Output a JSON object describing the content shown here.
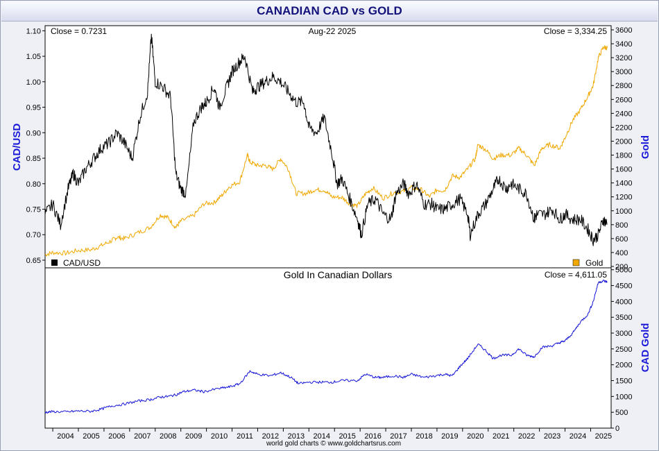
{
  "page": {
    "title": "CANADIAN CAD vs GOLD",
    "footer": "world gold charts © www.goldchartsrus.com"
  },
  "colors": {
    "cad": "#000000",
    "gold": "#f0a800",
    "cad_gold": "#1212d8",
    "axis_title": "#1a1ad8"
  },
  "chart_data": [
    {
      "type": "line",
      "title": "",
      "date_label": "Aug-22  2025",
      "left_close_label": "Close = 0.7231",
      "right_close_label": "Close = 3,334.25",
      "ylabel_left": "CAD/USD",
      "ylabel_right": "Gold",
      "ylim_left": [
        0.635,
        1.11
      ],
      "ylim_right": [
        180,
        3660
      ],
      "yticks_left": [
        "0.65",
        "0.70",
        "0.75",
        "0.80",
        "0.85",
        "0.90",
        "0.95",
        "1.00",
        "1.05",
        "1.10"
      ],
      "yticks_right": [
        "200",
        "400",
        "600",
        "800",
        "1000",
        "1200",
        "1400",
        "1600",
        "1800",
        "2000",
        "2200",
        "2400",
        "2600",
        "2800",
        "3000",
        "3200",
        "3400",
        "3600"
      ],
      "xlim": [
        2003.7,
        2025.8
      ],
      "grid": false,
      "legend": {
        "left": "CAD/USD",
        "right": "Gold",
        "placement": "bottom"
      },
      "series": [
        {
          "name": "CAD/USD",
          "axis": "left",
          "x": [
            2003.7,
            2004.0,
            2004.3,
            2004.6,
            2004.8,
            2005.0,
            2005.3,
            2005.6,
            2005.9,
            2006.2,
            2006.5,
            2006.8,
            2007.1,
            2007.4,
            2007.7,
            2007.85,
            2008.0,
            2008.3,
            2008.6,
            2008.8,
            2009.0,
            2009.2,
            2009.5,
            2009.8,
            2010.0,
            2010.3,
            2010.5,
            2010.8,
            2011.0,
            2011.3,
            2011.5,
            2011.8,
            2012.0,
            2012.3,
            2012.6,
            2012.9,
            2013.2,
            2013.5,
            2013.8,
            2014.0,
            2014.3,
            2014.6,
            2014.9,
            2015.1,
            2015.3,
            2015.6,
            2015.9,
            2016.05,
            2016.3,
            2016.6,
            2016.9,
            2017.2,
            2017.4,
            2017.7,
            2017.9,
            2018.2,
            2018.5,
            2018.8,
            2019.0,
            2019.3,
            2019.6,
            2019.9,
            2020.2,
            2020.3,
            2020.6,
            2020.9,
            2021.2,
            2021.4,
            2021.7,
            2021.9,
            2022.2,
            2022.5,
            2022.8,
            2022.9,
            2023.2,
            2023.5,
            2023.8,
            2024.0,
            2024.3,
            2024.6,
            2024.9,
            2025.1,
            2025.3,
            2025.5,
            2025.65
          ],
          "y": [
            0.74,
            0.76,
            0.72,
            0.79,
            0.82,
            0.8,
            0.83,
            0.85,
            0.87,
            0.88,
            0.9,
            0.88,
            0.85,
            0.93,
            0.98,
            1.09,
            1.0,
            0.99,
            0.97,
            0.82,
            0.79,
            0.78,
            0.92,
            0.95,
            0.96,
            0.99,
            0.95,
            0.99,
            1.02,
            1.04,
            1.05,
            0.98,
            0.99,
            1.0,
            1.01,
            1.0,
            0.98,
            0.96,
            0.96,
            0.91,
            0.9,
            0.93,
            0.86,
            0.8,
            0.81,
            0.77,
            0.73,
            0.7,
            0.76,
            0.77,
            0.74,
            0.73,
            0.78,
            0.8,
            0.78,
            0.8,
            0.76,
            0.76,
            0.75,
            0.75,
            0.76,
            0.77,
            0.74,
            0.7,
            0.74,
            0.76,
            0.79,
            0.81,
            0.79,
            0.8,
            0.79,
            0.78,
            0.73,
            0.74,
            0.74,
            0.75,
            0.73,
            0.74,
            0.73,
            0.73,
            0.71,
            0.69,
            0.7,
            0.73,
            0.72
          ]
        },
        {
          "name": "Gold",
          "axis": "right",
          "x": [
            2003.7,
            2004.0,
            2004.5,
            2005.0,
            2005.5,
            2005.9,
            2006.3,
            2006.5,
            2006.8,
            2007.3,
            2007.8,
            2008.2,
            2008.5,
            2008.8,
            2009.0,
            2009.5,
            2009.9,
            2010.3,
            2010.6,
            2010.9,
            2011.3,
            2011.6,
            2011.7,
            2012.0,
            2012.3,
            2012.6,
            2012.9,
            2013.2,
            2013.5,
            2013.9,
            2014.2,
            2014.6,
            2014.9,
            2015.3,
            2015.6,
            2015.9,
            2016.2,
            2016.5,
            2016.9,
            2017.3,
            2017.7,
            2018.0,
            2018.4,
            2018.7,
            2019.0,
            2019.3,
            2019.6,
            2019.9,
            2020.2,
            2020.5,
            2020.6,
            2020.9,
            2021.2,
            2021.5,
            2021.9,
            2022.2,
            2022.5,
            2022.8,
            2023.1,
            2023.4,
            2023.8,
            2024.0,
            2024.3,
            2024.6,
            2024.9,
            2025.1,
            2025.3,
            2025.5,
            2025.65
          ],
          "y": [
            370,
            400,
            390,
            430,
            440,
            500,
            570,
            620,
            600,
            680,
            760,
            940,
            900,
            760,
            850,
            930,
            1100,
            1120,
            1220,
            1350,
            1420,
            1800,
            1700,
            1650,
            1650,
            1600,
            1750,
            1600,
            1250,
            1250,
            1300,
            1300,
            1200,
            1190,
            1100,
            1070,
            1240,
            1330,
            1180,
            1260,
            1280,
            1330,
            1300,
            1200,
            1300,
            1290,
            1500,
            1480,
            1600,
            1750,
            1950,
            1880,
            1750,
            1800,
            1800,
            1900,
            1800,
            1650,
            1900,
            1950,
            1900,
            2050,
            2300,
            2450,
            2650,
            2800,
            3200,
            3350,
            3340
          ]
        }
      ]
    },
    {
      "type": "line",
      "title": "Gold In Canadian Dollars",
      "right_close_label": "Close = 4,611.05",
      "ylabel_right": "CAD Gold",
      "ylim": [
        0,
        5060
      ],
      "yticks_right": [
        "0",
        "500",
        "1000",
        "1500",
        "2000",
        "2500",
        "3000",
        "3500",
        "4000",
        "4500",
        "5000"
      ],
      "xlim": [
        2003.7,
        2025.8
      ],
      "xticks": [
        "2004",
        "2005",
        "2006",
        "2007",
        "2008",
        "2009",
        "2010",
        "2011",
        "2012",
        "2013",
        "2014",
        "2015",
        "2016",
        "2017",
        "2018",
        "2019",
        "2020",
        "2021",
        "2022",
        "2023",
        "2024",
        "2025"
      ],
      "grid": false,
      "series": [
        {
          "name": "Gold In Canadian Dollars",
          "axis": "right",
          "x": [
            2003.7,
            2004.0,
            2004.5,
            2005.0,
            2005.5,
            2005.9,
            2006.3,
            2006.8,
            2007.3,
            2007.8,
            2008.2,
            2008.5,
            2008.8,
            2009.1,
            2009.5,
            2009.9,
            2010.5,
            2010.9,
            2011.3,
            2011.7,
            2012.0,
            2012.5,
            2012.9,
            2013.3,
            2013.6,
            2014.0,
            2014.5,
            2014.9,
            2015.3,
            2015.9,
            2016.2,
            2016.6,
            2016.9,
            2017.3,
            2017.7,
            2018.0,
            2018.5,
            2018.9,
            2019.3,
            2019.6,
            2019.9,
            2020.2,
            2020.6,
            2020.9,
            2021.2,
            2021.5,
            2021.9,
            2022.2,
            2022.5,
            2022.8,
            2023.1,
            2023.5,
            2023.8,
            2024.0,
            2024.3,
            2024.6,
            2024.9,
            2025.1,
            2025.3,
            2025.5,
            2025.65
          ],
          "y": [
            500,
            520,
            510,
            540,
            530,
            600,
            700,
            760,
            850,
            900,
            980,
            1000,
            1050,
            1150,
            1200,
            1150,
            1250,
            1300,
            1400,
            1800,
            1700,
            1650,
            1750,
            1600,
            1400,
            1450,
            1450,
            1450,
            1500,
            1500,
            1700,
            1600,
            1600,
            1650,
            1600,
            1700,
            1600,
            1650,
            1700,
            1650,
            1950,
            2200,
            2650,
            2450,
            2200,
            2300,
            2300,
            2500,
            2300,
            2250,
            2550,
            2600,
            2700,
            2750,
            3000,
            3350,
            3600,
            4000,
            4600,
            4650,
            4611
          ]
        }
      ]
    }
  ]
}
